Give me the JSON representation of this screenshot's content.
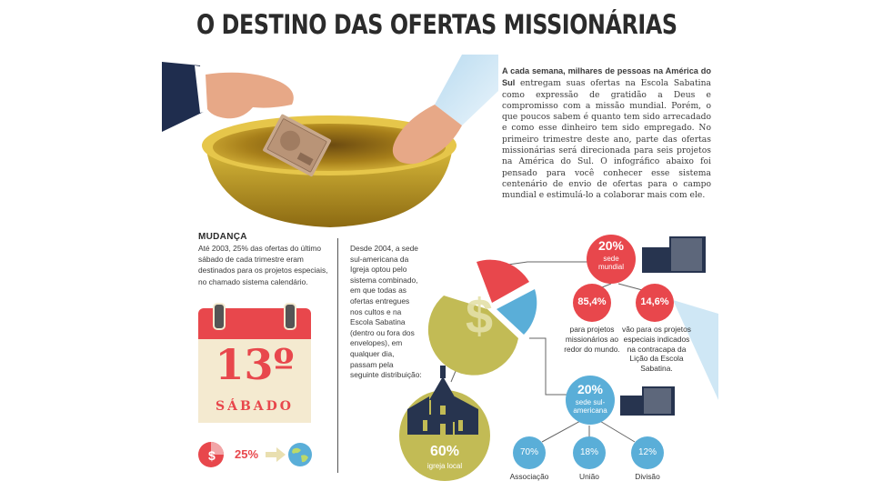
{
  "title": "O DESTINO DAS OFERTAS MISSIONÁRIAS",
  "intro": {
    "lead": "A cada semana, milhares de pessoas na América do Sul",
    "body": " entregam suas ofertas na Escola Sabatina como expressão de gratidão a Deus e compromisso com a missão mundial. Porém, o que poucos sabem é quanto tem sido arrecadado e como esse dinheiro tem sido empregado. No primeiro trimestre deste ano, parte das ofertas missionárias será direcionada para seis projetos na América do Sul. O infográfico abaixo foi pensado para você conhecer esse sistema centenário de envio de ofertas para o campo mundial e estimulá-lo a colaborar mais com ele."
  },
  "mudanca": {
    "heading": "MUDANÇA",
    "text": "Até 2003, 25% das ofertas do último sábado de cada trimestre eram destinados para os projetos especiais, no chamado sistema calendário."
  },
  "calendar": {
    "number": "13º",
    "label": "SÁBADO"
  },
  "legacy": {
    "percent": "25%"
  },
  "desde": {
    "text": "Desde 2004, a sede sul-americana da Igreja optou pelo sistema combinado, em que todas as ofertas entregues nos cultos e na Escola Sabatina (dentro ou fora dos envelopes), em qualquer dia, passam pela seguinte distribuição:"
  },
  "distribution": {
    "sede_mundial": {
      "percent": "20%",
      "label": "sede mundial"
    },
    "projetos_missionarios": {
      "percent": "85,4%",
      "label": "para projetos missionários ao redor do mundo."
    },
    "projetos_especiais": {
      "percent": "14,6%",
      "label": "vão para os projetos especiais indicados na contracapa da Lição da Escola Sabatina."
    },
    "sede_sul_americana": {
      "percent": "20%",
      "label": "sede sul-americana"
    },
    "igreja_local": {
      "percent": "60%",
      "label": "igreja local"
    },
    "associacao": {
      "percent": "70%",
      "label": "Associação"
    },
    "uniao": {
      "percent": "18%",
      "label": "União"
    },
    "divisao": {
      "percent": "12%",
      "label": "Divisão"
    }
  },
  "colors": {
    "red": "#e8474c",
    "blue": "#5aaed8",
    "olive": "#c2bb55",
    "navy": "#27344f",
    "gold": "#c9a227"
  }
}
